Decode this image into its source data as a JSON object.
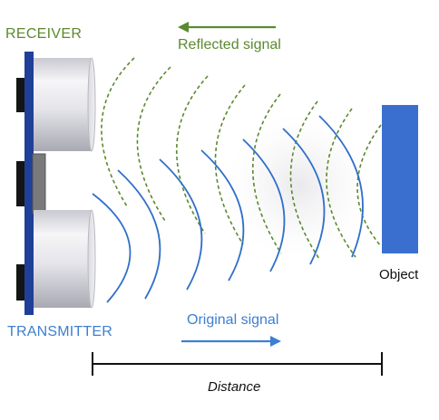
{
  "labels": {
    "receiver": "RECEIVER",
    "transmitter": "TRANSMITTER",
    "reflected_signal": "Reflected signal",
    "original_signal": "Original signal",
    "object": "Object",
    "distance": "Distance"
  },
  "colors": {
    "reflected": "#5a8a2e",
    "original": "#2f6fc9",
    "sensor_board": "#1f3f99",
    "object": "#3a6fd0",
    "dark": "#111111",
    "label_blue": "#3d7fd0"
  }
}
